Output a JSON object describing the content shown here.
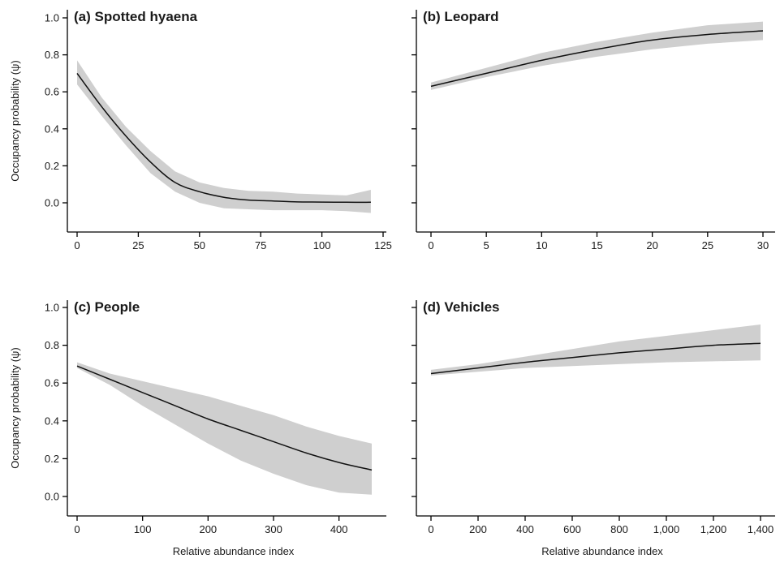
{
  "chart_data": [
    {
      "type": "line",
      "title": "(a) Spotted hyaena",
      "ylabel": "Occupancy probability (ψ)",
      "xlabel": "",
      "xlim": [
        0,
        125
      ],
      "ylim": [
        -0.08,
        1.05
      ],
      "xticks": [
        0,
        25,
        50,
        75,
        100,
        125
      ],
      "xtick_labels": [
        "0",
        "25",
        "50",
        "75",
        "100",
        "125"
      ],
      "yticks": [
        0.0,
        0.2,
        0.4,
        0.6,
        0.8,
        1.0
      ],
      "ytick_labels": [
        "0.0",
        "0.2",
        "0.4",
        "0.6",
        "0.8",
        "1.0"
      ],
      "x": [
        0,
        10,
        20,
        30,
        40,
        50,
        60,
        70,
        80,
        90,
        100,
        110,
        120
      ],
      "y": [
        0.7,
        0.52,
        0.36,
        0.22,
        0.11,
        0.06,
        0.03,
        0.015,
        0.01,
        0.005,
        0.004,
        0.003,
        0.003
      ],
      "lower": [
        0.64,
        0.47,
        0.31,
        0.16,
        0.06,
        0.0,
        -0.03,
        -0.035,
        -0.04,
        -0.04,
        -0.04,
        -0.045,
        -0.055
      ],
      "upper": [
        0.77,
        0.57,
        0.41,
        0.28,
        0.17,
        0.11,
        0.08,
        0.065,
        0.06,
        0.05,
        0.045,
        0.04,
        0.07
      ]
    },
    {
      "type": "line",
      "title": "(b) Leopard",
      "ylabel": "",
      "xlabel": "",
      "xlim": [
        0,
        30
      ],
      "ylim": [
        -0.08,
        1.05
      ],
      "xticks": [
        0,
        5,
        10,
        15,
        20,
        25,
        30
      ],
      "xtick_labels": [
        "0",
        "5",
        "10",
        "15",
        "20",
        "25",
        "30"
      ],
      "yticks": [
        0.0,
        0.2,
        0.4,
        0.6,
        0.8,
        1.0
      ],
      "ytick_labels": [
        "",
        "",
        "",
        "",
        "",
        ""
      ],
      "x": [
        0,
        5,
        10,
        15,
        20,
        25,
        30
      ],
      "y": [
        0.63,
        0.7,
        0.77,
        0.83,
        0.88,
        0.91,
        0.93
      ],
      "lower": [
        0.61,
        0.68,
        0.74,
        0.79,
        0.83,
        0.86,
        0.88
      ],
      "upper": [
        0.65,
        0.73,
        0.81,
        0.87,
        0.92,
        0.96,
        0.98
      ]
    },
    {
      "type": "line",
      "title": "(c) People",
      "ylabel": "Occupancy probability (ψ)",
      "xlabel": "Relative abundance index",
      "xlim": [
        0,
        450
      ],
      "ylim": [
        -0.08,
        1.05
      ],
      "xticks": [
        0,
        100,
        200,
        300,
        400
      ],
      "xtick_labels": [
        "0",
        "100",
        "200",
        "300",
        "400"
      ],
      "yticks": [
        0.0,
        0.2,
        0.4,
        0.6,
        0.8,
        1.0
      ],
      "ytick_labels": [
        "0.0",
        "0.2",
        "0.4",
        "0.6",
        "0.8",
        "1.0"
      ],
      "x": [
        0,
        50,
        100,
        150,
        200,
        250,
        300,
        350,
        400,
        450
      ],
      "y": [
        0.69,
        0.62,
        0.55,
        0.48,
        0.41,
        0.35,
        0.29,
        0.23,
        0.18,
        0.14
      ],
      "lower": [
        0.68,
        0.59,
        0.48,
        0.38,
        0.28,
        0.19,
        0.12,
        0.06,
        0.02,
        0.01
      ],
      "upper": [
        0.71,
        0.65,
        0.61,
        0.57,
        0.53,
        0.48,
        0.43,
        0.37,
        0.32,
        0.28
      ]
    },
    {
      "type": "line",
      "title": "(d) Vehicles",
      "ylabel": "",
      "xlabel": "Relative abundance index",
      "xlim": [
        0,
        1400
      ],
      "ylim": [
        -0.08,
        1.05
      ],
      "xticks": [
        0,
        200,
        400,
        600,
        800,
        1000,
        1200,
        1400
      ],
      "xtick_labels": [
        "0",
        "200",
        "400",
        "600",
        "800",
        "1,000",
        "1,200",
        "1,400"
      ],
      "yticks": [
        0.0,
        0.2,
        0.4,
        0.6,
        0.8,
        1.0
      ],
      "ytick_labels": [
        "",
        "",
        "",
        "",
        "",
        ""
      ],
      "x": [
        0,
        200,
        400,
        600,
        800,
        1000,
        1200,
        1400
      ],
      "y": [
        0.65,
        0.68,
        0.71,
        0.735,
        0.76,
        0.78,
        0.8,
        0.81
      ],
      "lower": [
        0.64,
        0.66,
        0.68,
        0.69,
        0.7,
        0.71,
        0.715,
        0.72
      ],
      "upper": [
        0.67,
        0.7,
        0.74,
        0.78,
        0.82,
        0.85,
        0.88,
        0.91
      ]
    }
  ]
}
